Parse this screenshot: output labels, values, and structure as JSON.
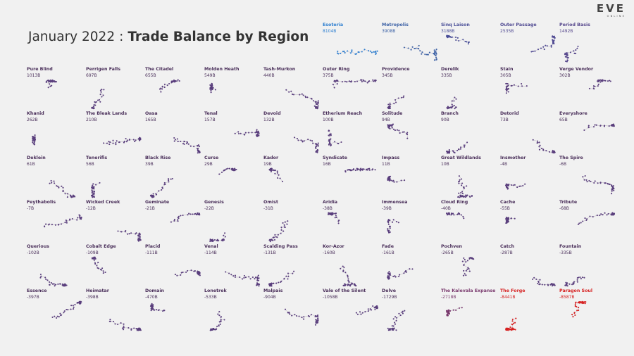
{
  "title": {
    "prefix": "January 2022",
    "separator": ":",
    "main": "Trade Balance by Region"
  },
  "logo": {
    "eve": "EVE",
    "online": "ONLINE"
  },
  "colors": {
    "positive_high": "#3b6fb0",
    "neutral": "#5a3a74",
    "negative_high": "#cc2222",
    "edge": "#b8b0bd"
  },
  "chart_data": {
    "type": "small-multiples",
    "title": "January 2022 : Trade Balance by Region",
    "unit": "B",
    "regions": [
      {
        "name": "Esoteria",
        "label": "8104B",
        "value": 8104,
        "color": "#2e7fd0"
      },
      {
        "name": "Metropolis",
        "label": "3908B",
        "value": 3908,
        "color": "#3d62a6"
      },
      {
        "name": "Sinq Laison",
        "label": "3188B",
        "value": 3188,
        "color": "#4a4f98"
      },
      {
        "name": "Outer Passage",
        "label": "2535B",
        "value": 2535,
        "color": "#504a92"
      },
      {
        "name": "Period Basis",
        "label": "1492B",
        "value": 1492,
        "color": "#56478c"
      },
      {
        "name": "Pure Blind",
        "label": "1013B",
        "value": 1013,
        "color": "#5a3f7d"
      },
      {
        "name": "Perrigen Falls",
        "label": "697B",
        "value": 697,
        "color": "#5a3f7d"
      },
      {
        "name": "The Citadel",
        "label": "655B",
        "value": 655,
        "color": "#5a3f7d"
      },
      {
        "name": "Molden Heath",
        "label": "549B",
        "value": 549,
        "color": "#5a3f7d"
      },
      {
        "name": "Tash-Murkon",
        "label": "440B",
        "value": 440,
        "color": "#5a3f7d"
      },
      {
        "name": "Outer Ring",
        "label": "375B",
        "value": 375,
        "color": "#5a3f7d"
      },
      {
        "name": "Providence",
        "label": "345B",
        "value": 345,
        "color": "#5a3f7d"
      },
      {
        "name": "Derelik",
        "label": "335B",
        "value": 335,
        "color": "#5a3f7d"
      },
      {
        "name": "Stain",
        "label": "305B",
        "value": 305,
        "color": "#5a3f7d"
      },
      {
        "name": "Verge Vendor",
        "label": "302B",
        "value": 302,
        "color": "#5a3f7d"
      },
      {
        "name": "Khanid",
        "label": "262B",
        "value": 262,
        "color": "#5a3f7d"
      },
      {
        "name": "The Bleak Lands",
        "label": "210B",
        "value": 210,
        "color": "#5a3f7d"
      },
      {
        "name": "Oasa",
        "label": "165B",
        "value": 165,
        "color": "#5a3f7d"
      },
      {
        "name": "Tenal",
        "label": "157B",
        "value": 157,
        "color": "#5a3f7d"
      },
      {
        "name": "Devoid",
        "label": "132B",
        "value": 132,
        "color": "#5a3f7d"
      },
      {
        "name": "Etherium Reach",
        "label": "100B",
        "value": 100,
        "color": "#5a3f7d"
      },
      {
        "name": "Solitude",
        "label": "94B",
        "value": 94,
        "color": "#5a3f7d"
      },
      {
        "name": "Branch",
        "label": "90B",
        "value": 90,
        "color": "#5a3f7d"
      },
      {
        "name": "Detorid",
        "label": "73B",
        "value": 73,
        "color": "#5a3f7d"
      },
      {
        "name": "Everyshore",
        "label": "65B",
        "value": 65,
        "color": "#5a3f7d"
      },
      {
        "name": "Deklein",
        "label": "61B",
        "value": 61,
        "color": "#5a3f7d"
      },
      {
        "name": "Tenerifis",
        "label": "56B",
        "value": 56,
        "color": "#5a3f7d"
      },
      {
        "name": "Black Rise",
        "label": "39B",
        "value": 39,
        "color": "#5a3f7d"
      },
      {
        "name": "Curse",
        "label": "29B",
        "value": 29,
        "color": "#5a3f7d"
      },
      {
        "name": "Kador",
        "label": "19B",
        "value": 19,
        "color": "#5a3f7d"
      },
      {
        "name": "Syndicate",
        "label": "16B",
        "value": 16,
        "color": "#5a3f7d"
      },
      {
        "name": "Impass",
        "label": "11B",
        "value": 11,
        "color": "#5a3f7d"
      },
      {
        "name": "Great Wildlands",
        "label": "10B",
        "value": 10,
        "color": "#5a3f7d"
      },
      {
        "name": "Insmother",
        "label": "-4B",
        "value": -4,
        "color": "#5a3f7d"
      },
      {
        "name": "The Spire",
        "label": "-6B",
        "value": -6,
        "color": "#5a3f7d"
      },
      {
        "name": "Feythabolis",
        "label": "-7B",
        "value": -7,
        "color": "#5a3f7d"
      },
      {
        "name": "Wicked Creek",
        "label": "-12B",
        "value": -12,
        "color": "#5a3f7d"
      },
      {
        "name": "Geminate",
        "label": "-21B",
        "value": -21,
        "color": "#5a3f7d"
      },
      {
        "name": "Genesis",
        "label": "-22B",
        "value": -22,
        "color": "#5a3f7d"
      },
      {
        "name": "Omist",
        "label": "-31B",
        "value": -31,
        "color": "#5a3f7d"
      },
      {
        "name": "Aridia",
        "label": "-38B",
        "value": -38,
        "color": "#5a3f7d"
      },
      {
        "name": "Immensea",
        "label": "-39B",
        "value": -39,
        "color": "#5a3f7d"
      },
      {
        "name": "Cloud Ring",
        "label": "-40B",
        "value": -40,
        "color": "#5a3f7d"
      },
      {
        "name": "Cache",
        "label": "-55B",
        "value": -55,
        "color": "#5a3f7d"
      },
      {
        "name": "Tribute",
        "label": "-68B",
        "value": -68,
        "color": "#5a3f7d"
      },
      {
        "name": "Querious",
        "label": "-102B",
        "value": -102,
        "color": "#5a3f7d"
      },
      {
        "name": "Cobalt Edge",
        "label": "-109B",
        "value": -109,
        "color": "#5a3f7d"
      },
      {
        "name": "Placid",
        "label": "-111B",
        "value": -111,
        "color": "#5a3f7d"
      },
      {
        "name": "Venal",
        "label": "-114B",
        "value": -114,
        "color": "#5a3f7d"
      },
      {
        "name": "Scalding Pass",
        "label": "-131B",
        "value": -131,
        "color": "#5a3f7d"
      },
      {
        "name": "Kor-Azor",
        "label": "-160B",
        "value": -160,
        "color": "#5a3f7d"
      },
      {
        "name": "Fade",
        "label": "-161B",
        "value": -161,
        "color": "#5a3f7d"
      },
      {
        "name": "Pochven",
        "label": "-265B",
        "value": -265,
        "color": "#5a3f7d"
      },
      {
        "name": "Catch",
        "label": "-287B",
        "value": -287,
        "color": "#5a3f7d"
      },
      {
        "name": "Fountain",
        "label": "-335B",
        "value": -335,
        "color": "#5a3f7d"
      },
      {
        "name": "Essence",
        "label": "-397B",
        "value": -397,
        "color": "#5a3f7d"
      },
      {
        "name": "Heimatar",
        "label": "-398B",
        "value": -398,
        "color": "#5a3f7d"
      },
      {
        "name": "Domain",
        "label": "-470B",
        "value": -470,
        "color": "#5a3f7d"
      },
      {
        "name": "Lonetrek",
        "label": "-533B",
        "value": -533,
        "color": "#5a3f7d"
      },
      {
        "name": "Malpais",
        "label": "-904B",
        "value": -904,
        "color": "#5a3f7d"
      },
      {
        "name": "Vale of the Silent",
        "label": "-1058B",
        "value": -1058,
        "color": "#5a3f7d"
      },
      {
        "name": "Delve",
        "label": "-1729B",
        "value": -1729,
        "color": "#5a3f7d"
      },
      {
        "name": "The Kalevala Expanse",
        "label": "-2718B",
        "value": -2718,
        "color": "#7a3a6e"
      },
      {
        "name": "The Forge",
        "label": "-8441B",
        "value": -8441,
        "color": "#d62020"
      },
      {
        "name": "Paragon Soul",
        "label": "-8587B",
        "value": -8587,
        "color": "#d62020"
      }
    ]
  }
}
